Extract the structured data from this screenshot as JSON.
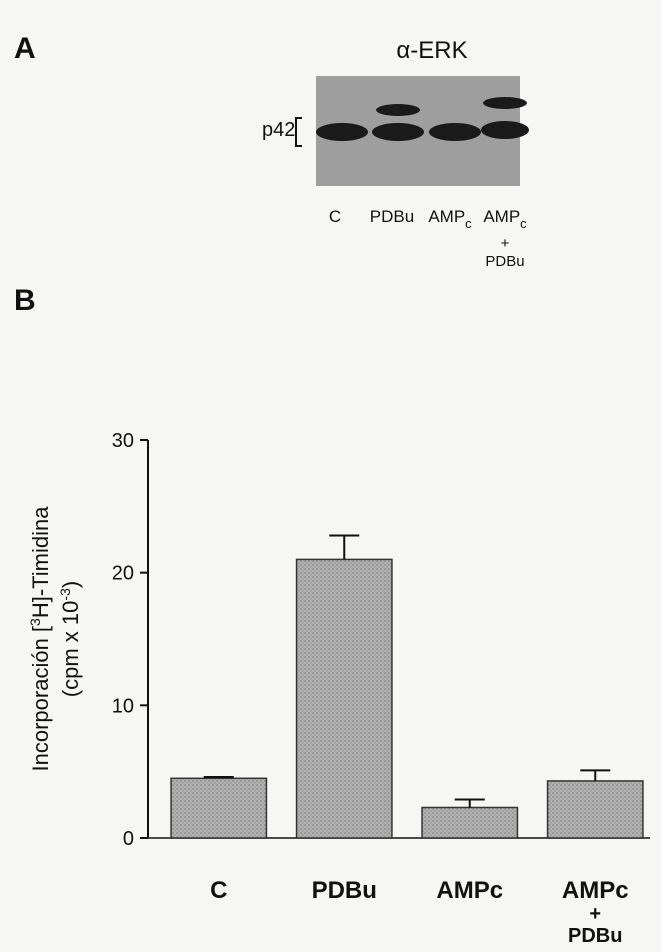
{
  "panel_a": {
    "label": "A",
    "title": "α-ERK",
    "band_label": "p42",
    "lanes": [
      {
        "label": "C"
      },
      {
        "label": "PDBu"
      },
      {
        "label": "AMP",
        "sub": "c"
      },
      {
        "label": "AMP",
        "sub": "c",
        "below": [
          "+",
          "PDBu"
        ]
      }
    ]
  },
  "chart_data": {
    "type": "bar",
    "panel_label": "B",
    "ylabel": [
      [
        "Incorporación [",
        "3",
        "H]-Timidina"
      ],
      [
        "(cpm x 10",
        "-3",
        ")"
      ]
    ],
    "categories": [
      [
        "C"
      ],
      [
        "PDBu"
      ],
      [
        "AMPc"
      ],
      [
        "AMPc",
        "+",
        "PDBu"
      ]
    ],
    "values": [
      4.5,
      21,
      2.3,
      4.3
    ],
    "errors": [
      0.1,
      1.8,
      0.6,
      0.8
    ],
    "color": "#a9a9a9",
    "ylim": [
      0,
      30
    ],
    "yticks": [
      0,
      10,
      20,
      30
    ],
    "grid": false
  }
}
